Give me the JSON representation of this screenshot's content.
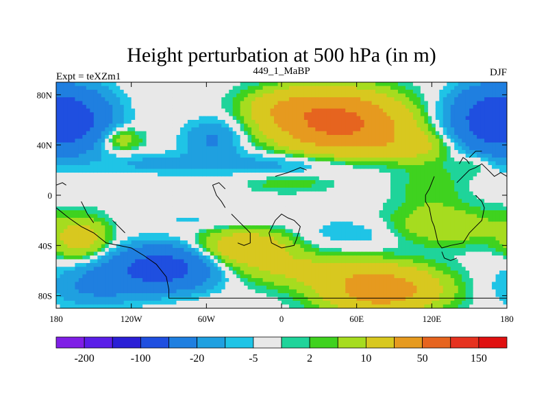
{
  "chart_data": {
    "type": "heatmap",
    "title": "Height perturbation at 500 hPa (in m)",
    "subtitle_left": "Expt = teXZm1",
    "subtitle_center": "449_1_MaBP",
    "subtitle_right": "DJF",
    "xlim": [
      -180,
      180
    ],
    "ylim": [
      -90,
      90
    ],
    "x_ticks": [
      {
        "value": -180,
        "label": "180"
      },
      {
        "value": -120,
        "label": "120W"
      },
      {
        "value": -60,
        "label": "60W"
      },
      {
        "value": 0,
        "label": "0"
      },
      {
        "value": 60,
        "label": "60E"
      },
      {
        "value": 120,
        "label": "120E"
      },
      {
        "value": 180,
        "label": "180"
      }
    ],
    "y_ticks": [
      {
        "value": 80,
        "label": "80N"
      },
      {
        "value": 40,
        "label": "40N"
      },
      {
        "value": 0,
        "label": "0"
      },
      {
        "value": -40,
        "label": "40S"
      },
      {
        "value": -80,
        "label": "80S"
      }
    ],
    "colorbar": {
      "colors": [
        "#7f1fe6",
        "#5a1ee8",
        "#2a1fd6",
        "#1f4fe0",
        "#1f7fe0",
        "#1fa0e0",
        "#1fc4e6",
        "#e8e8e8",
        "#1fd49a",
        "#3fd21f",
        "#a6dc1f",
        "#d8c81f",
        "#e69a1f",
        "#e6641f",
        "#e6321f",
        "#e01010"
      ],
      "tick_labels": [
        {
          "index": 1,
          "label": "-200"
        },
        {
          "index": 3,
          "label": "-100"
        },
        {
          "index": 5,
          "label": "-20"
        },
        {
          "index": 7,
          "label": "-5"
        },
        {
          "index": 9,
          "label": "2"
        },
        {
          "index": 11,
          "label": "10"
        },
        {
          "index": 13,
          "label": "50"
        },
        {
          "index": 15,
          "label": "150"
        }
      ]
    },
    "field_centers": [
      {
        "lon": -165,
        "lat": 60,
        "amp": -55,
        "slon": 22,
        "slat": 17
      },
      {
        "lon": 165,
        "lat": 60,
        "amp": -60,
        "slon": 22,
        "slat": 18
      },
      {
        "lon": -55,
        "lat": 45,
        "amp": -22,
        "slon": 16,
        "slat": 11
      },
      {
        "lon": -130,
        "lat": 45,
        "amp": 22,
        "slon": 12,
        "slat": 7
      },
      {
        "lon": 45,
        "lat": 58,
        "amp": 120,
        "slon": 32,
        "slat": 15
      },
      {
        "lon": 5,
        "lat": 70,
        "amp": 30,
        "slon": 22,
        "slat": 10
      },
      {
        "lon": 100,
        "lat": 40,
        "amp": 25,
        "slon": 25,
        "slat": 9
      },
      {
        "lon": 155,
        "lat": 25,
        "amp": 10,
        "slon": 10,
        "slat": 7
      },
      {
        "lon": 0,
        "lat": 25,
        "amp": -14,
        "slon": 45,
        "slat": 7
      },
      {
        "lon": -100,
        "lat": 25,
        "amp": -12,
        "slon": 30,
        "slat": 6
      },
      {
        "lon": 5,
        "lat": 10,
        "amp": 9,
        "slon": 22,
        "slat": 5
      },
      {
        "lon": 120,
        "lat": 5,
        "amp": 9,
        "slon": 18,
        "slat": 18
      },
      {
        "lon": -160,
        "lat": -35,
        "amp": 30,
        "slon": 15,
        "slat": 11
      },
      {
        "lon": -30,
        "lat": -42,
        "amp": 40,
        "slon": 26,
        "slat": 10
      },
      {
        "lon": 80,
        "lat": -75,
        "amp": 75,
        "slon": 30,
        "slat": 12
      },
      {
        "lon": 20,
        "lat": -60,
        "amp": 22,
        "slon": 35,
        "slat": 9
      },
      {
        "lon": 130,
        "lat": -25,
        "amp": 18,
        "slon": 35,
        "slat": 10
      },
      {
        "lon": -95,
        "lat": -58,
        "amp": -70,
        "slon": 28,
        "slat": 12
      },
      {
        "lon": -150,
        "lat": -72,
        "amp": -22,
        "slon": 25,
        "slat": 12
      },
      {
        "lon": 60,
        "lat": -30,
        "amp": -10,
        "slon": 30,
        "slat": 9
      },
      {
        "lon": -60,
        "lat": -20,
        "amp": -6,
        "slon": 40,
        "slat": 6
      }
    ],
    "coastlines": [
      [
        [
          -180,
          -10
        ],
        [
          -170,
          -18
        ],
        [
          -160,
          -25
        ],
        [
          -150,
          -30
        ],
        [
          -140,
          -38
        ],
        [
          -130,
          -40
        ],
        [
          -120,
          -42
        ],
        [
          -110,
          -48
        ],
        [
          -100,
          -55
        ],
        [
          -92,
          -65
        ],
        [
          -90,
          -75
        ],
        [
          -90,
          -82
        ],
        [
          -30,
          -82
        ],
        [
          30,
          -82
        ],
        [
          90,
          -82
        ],
        [
          150,
          -82
        ],
        [
          180,
          -82
        ]
      ],
      [
        [
          -160,
          -5
        ],
        [
          -155,
          -15
        ],
        [
          -150,
          -22
        ]
      ],
      [
        [
          -135,
          -20
        ],
        [
          -130,
          -25
        ],
        [
          -125,
          -30
        ]
      ],
      [
        [
          -180,
          8
        ],
        [
          -175,
          10
        ],
        [
          -172,
          8
        ]
      ],
      [
        [
          -45,
          5
        ],
        [
          -50,
          10
        ],
        [
          -55,
          8
        ],
        [
          -52,
          0
        ],
        [
          -48,
          -5
        ],
        [
          -45,
          -10
        ]
      ],
      [
        [
          -40,
          -15
        ],
        [
          -35,
          -20
        ],
        [
          -30,
          -25
        ],
        [
          -25,
          -30
        ],
        [
          -25,
          -38
        ],
        [
          -30,
          -40
        ],
        [
          -35,
          -38
        ]
      ],
      [
        [
          -5,
          -20
        ],
        [
          0,
          -15
        ],
        [
          5,
          -18
        ],
        [
          10,
          -20
        ],
        [
          15,
          -25
        ],
        [
          12,
          -35
        ],
        [
          10,
          -40
        ],
        [
          0,
          -42
        ],
        [
          -8,
          -38
        ],
        [
          -10,
          -30
        ],
        [
          -5,
          -20
        ]
      ],
      [
        [
          -5,
          15
        ],
        [
          5,
          18
        ],
        [
          10,
          20
        ],
        [
          15,
          22
        ],
        [
          20,
          20
        ]
      ],
      [
        [
          120,
          -20
        ],
        [
          122,
          -25
        ],
        [
          125,
          -38
        ],
        [
          128,
          -42
        ],
        [
          135,
          -40
        ],
        [
          145,
          -38
        ],
        [
          150,
          -30
        ],
        [
          155,
          -25
        ],
        [
          160,
          -20
        ],
        [
          162,
          -10
        ],
        [
          160,
          -5
        ],
        [
          155,
          0
        ]
      ],
      [
        [
          120,
          -20
        ],
        [
          118,
          -10
        ],
        [
          115,
          -5
        ],
        [
          115,
          0
        ],
        [
          118,
          5
        ],
        [
          120,
          10
        ],
        [
          122,
          15
        ]
      ],
      [
        [
          128,
          -45
        ],
        [
          130,
          -50
        ],
        [
          135,
          -52
        ],
        [
          140,
          -50
        ]
      ],
      [
        [
          140,
          10
        ],
        [
          145,
          15
        ],
        [
          150,
          20
        ],
        [
          155,
          22
        ],
        [
          160,
          25
        ],
        [
          165,
          20
        ],
        [
          170,
          15
        ],
        [
          175,
          18
        ],
        [
          180,
          15
        ]
      ],
      [
        [
          142,
          25
        ],
        [
          145,
          30
        ],
        [
          148,
          28
        ],
        [
          150,
          25
        ]
      ],
      [
        [
          150,
          30
        ],
        [
          152,
          32
        ],
        [
          155,
          35
        ],
        [
          160,
          35
        ]
      ]
    ]
  }
}
